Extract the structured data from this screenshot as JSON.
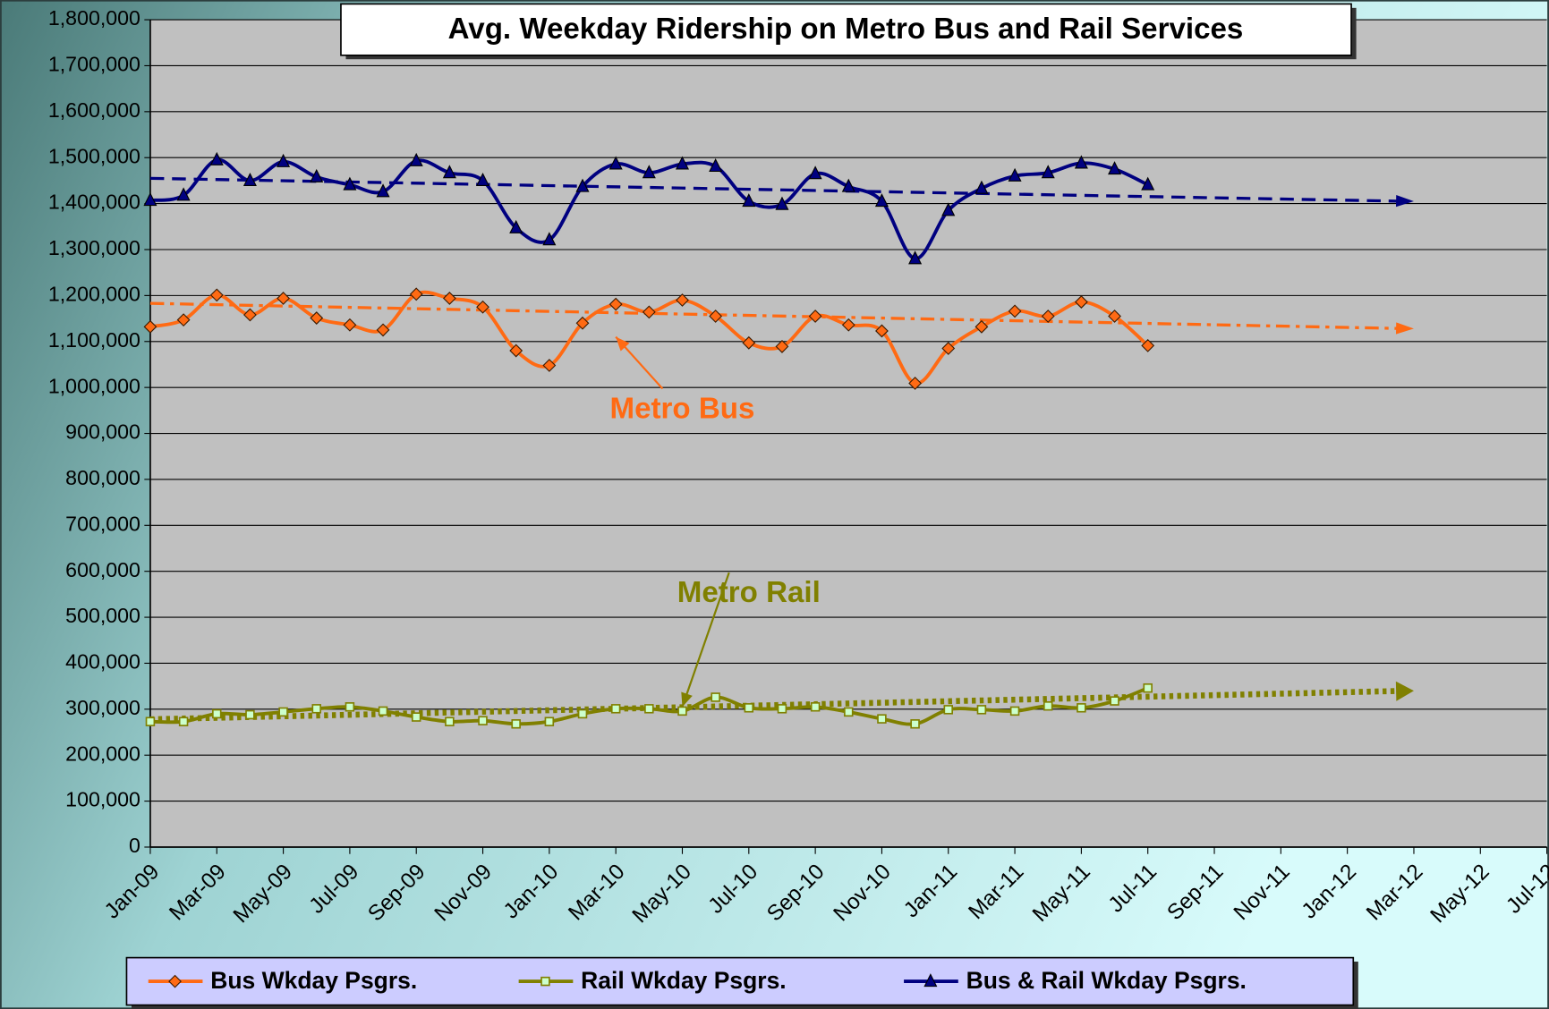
{
  "chart_data": {
    "type": "line",
    "title": "Avg. Weekday Ridership on Metro Bus and Rail Services",
    "categories": [
      "Jan-09",
      null,
      "Mar-09",
      null,
      "May-09",
      null,
      "Jul-09",
      null,
      "Sep-09",
      null,
      "Nov-09",
      null,
      "Jan-10",
      null,
      "Mar-10",
      null,
      "May-10",
      null,
      "Jul-10",
      null,
      "Sep-10",
      null,
      "Nov-10",
      null,
      "Jan-11",
      null,
      "Mar-11",
      null,
      "May-11",
      null,
      "Jul-11",
      null,
      "Sep-11",
      null,
      "Nov-11",
      null,
      "Jan-12",
      null,
      "Mar-12",
      null,
      "May-12",
      null,
      "Jul-12"
    ],
    "ylim": [
      0,
      1800000
    ],
    "yticks": [
      0,
      {
        "value": 100000,
        "label": "100,000"
      },
      {
        "value": 200000,
        "label": "200,000"
      },
      {
        "value": 300000,
        "label": "300,000"
      },
      {
        "value": 400000,
        "label": "400,000"
      },
      {
        "value": 500000,
        "label": "500,000"
      },
      {
        "value": 600000,
        "label": "600,000"
      },
      {
        "value": 700000,
        "label": "700,000"
      },
      {
        "value": 800000,
        "label": "800,000"
      },
      {
        "value": 900000,
        "label": "900,000"
      },
      {
        "value": 1000000,
        "label": "1,000,000"
      },
      {
        "value": 1100000,
        "label": "1,100,000"
      },
      {
        "value": 1200000,
        "label": "1,200,000"
      },
      {
        "value": 1300000,
        "label": "1,300,000"
      },
      {
        "value": 1400000,
        "label": "1,400,000"
      },
      {
        "value": 1500000,
        "label": "1,500,000"
      },
      {
        "value": 1600000,
        "label": "1,600,000"
      },
      {
        "value": 1700000,
        "label": "1,700,000"
      },
      {
        "value": 1800000,
        "label": "1,800,000"
      }
    ],
    "grid": true,
    "series": [
      {
        "name": "Bus Wkday Psgrs.",
        "color": "#ff6a13",
        "marker": "diamond",
        "values": [
          1132000,
          1147000,
          1201000,
          1158000,
          1194000,
          1151000,
          1136000,
          1125000,
          1203000,
          1194000,
          1175000,
          1080000,
          1048000,
          1140000,
          1181000,
          1164000,
          1190000,
          1155000,
          1097000,
          1089000,
          1155000,
          1136000,
          1123000,
          1009000,
          1085000,
          1132000,
          1166000,
          1155000,
          1186000,
          1155000,
          1091000,
          null,
          null,
          null,
          null,
          null,
          null,
          null,
          null,
          null,
          null,
          null,
          null
        ],
        "trend": {
          "x": [
            "Jan-09",
            "Mar-12"
          ],
          "values": [
            1183000,
            1128000
          ],
          "dash": "14 6 4 6"
        }
      },
      {
        "name": "Rail Wkday Psgrs.",
        "color": "#808000",
        "marker": "cross",
        "values": [
          273000,
          273000,
          290000,
          288000,
          294000,
          301000,
          305000,
          296000,
          283000,
          273000,
          275000,
          268000,
          273000,
          290000,
          301000,
          301000,
          296000,
          326000,
          303000,
          301000,
          305000,
          294000,
          279000,
          268000,
          299000,
          299000,
          296000,
          307000,
          303000,
          318000,
          346000,
          null,
          null,
          null,
          null,
          null,
          null,
          null,
          null,
          null,
          null,
          null,
          null
        ],
        "trend": {
          "x": [
            "Jan-09",
            "Mar-12"
          ],
          "values": [
            278000,
            340000
          ],
          "dash": "4 4"
        }
      },
      {
        "name": "Bus & Rail Wkday Psgrs.",
        "color": "#000080",
        "marker": "triangle",
        "values": [
          1407000,
          1418000,
          1495000,
          1450000,
          1491000,
          1458000,
          1441000,
          1426000,
          1493000,
          1467000,
          1450000,
          1347000,
          1321000,
          1437000,
          1486000,
          1467000,
          1486000,
          1481000,
          1405000,
          1398000,
          1465000,
          1437000,
          1405000,
          1280000,
          1385000,
          1433000,
          1460000,
          1467000,
          1488000,
          1475000,
          1441000,
          null,
          null,
          null,
          null,
          null,
          null,
          null,
          null,
          null,
          null,
          null,
          null
        ],
        "trend": {
          "x": [
            "Jan-09",
            "Mar-12"
          ],
          "values": [
            1455000,
            1405000
          ],
          "dash": "14 8"
        }
      }
    ],
    "annotations": [
      {
        "text": "Metro Bus",
        "color": "#ff6a13",
        "x": "May-10",
        "y": 950000,
        "arrow_x": "Mar-10",
        "arrow_y": 1110000
      },
      {
        "text": "Metro Rail",
        "color": "#808000",
        "x": "Jul-10",
        "y": 550000,
        "arrow_x": "May-10",
        "arrow_y": 305000
      }
    ],
    "legend": "bottom"
  }
}
